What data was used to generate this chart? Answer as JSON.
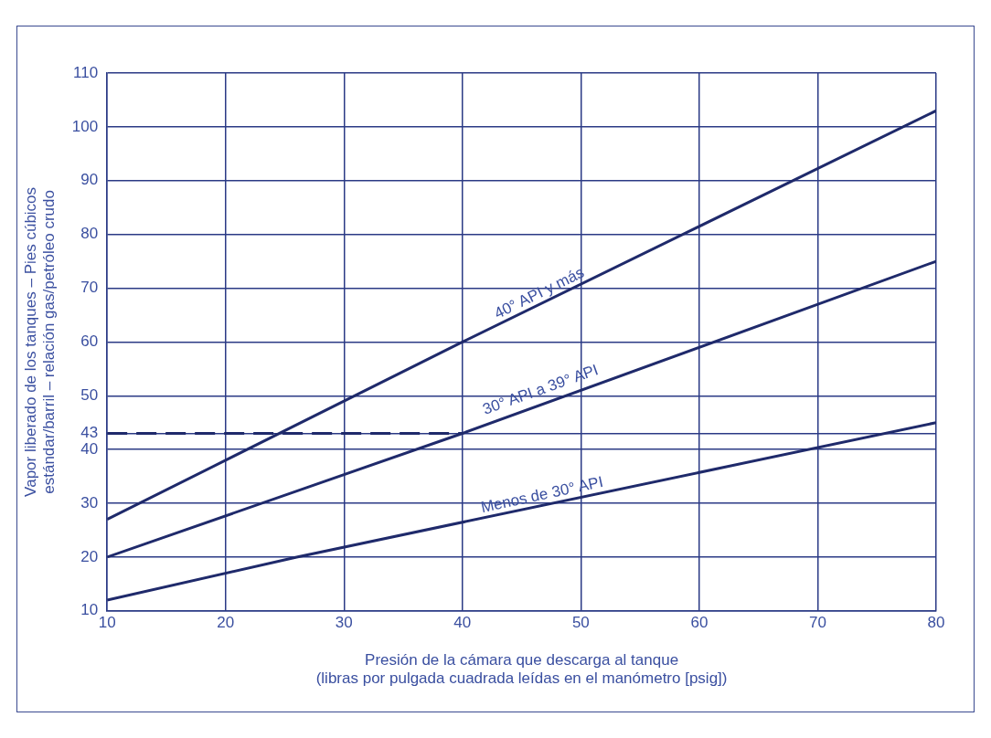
{
  "chart_data": {
    "type": "line",
    "xlabel": "Presión de la cámara que descarga al tanque\n(libras por pulgada cuadrada leídas en el manómetro [psig])",
    "ylabel": "Vapor liberado de los tanques – Pies cúbicos\nestándar/barril – relación gas/petróleo crudo",
    "series": [
      {
        "name": "40° API y más",
        "color": "#1f2a6b",
        "x": [
          10,
          40,
          80
        ],
        "values": [
          27,
          60,
          103
        ]
      },
      {
        "name": "30° API a 39° API",
        "color": "#1f2a6b",
        "x": [
          10,
          40,
          80
        ],
        "values": [
          20,
          43,
          75
        ]
      },
      {
        "name": "Menos de 30° API",
        "color": "#1f2a6b",
        "x": [
          10,
          26,
          80
        ],
        "values": [
          12,
          20,
          45
        ]
      },
      {
        "color": "#1f2a6b",
        "x": [
          10,
          40
        ],
        "values": [
          43,
          43
        ],
        "line_style": "dashed"
      }
    ],
    "xlim": [
      10,
      80
    ],
    "xticks": [
      10,
      20,
      30,
      40,
      50,
      60,
      70,
      80
    ],
    "ylim": [
      10,
      110
    ],
    "yticks": [
      10,
      20,
      30,
      40,
      43,
      50,
      60,
      70,
      80,
      90,
      100,
      110
    ],
    "grid": true,
    "legend": false,
    "marker": "none",
    "line_style": "solid"
  }
}
